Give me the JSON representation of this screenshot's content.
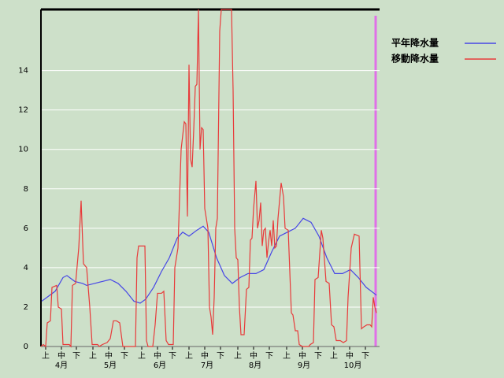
{
  "chart_data": {
    "type": "line",
    "xlim": [
      0,
      213
    ],
    "ylim": [
      0,
      17.1
    ],
    "yticks": [
      0,
      2,
      4,
      6,
      8,
      10,
      12,
      14
    ],
    "xticks": [
      {
        "value": 3,
        "label": "上"
      },
      {
        "value": 13,
        "label": "中"
      },
      {
        "value": 22.5,
        "label": "下"
      },
      {
        "value": 33,
        "label": "上"
      },
      {
        "value": 43,
        "label": "中"
      },
      {
        "value": 53,
        "label": "下"
      },
      {
        "value": 64,
        "label": "上"
      },
      {
        "value": 74,
        "label": "中"
      },
      {
        "value": 83.5,
        "label": "下"
      },
      {
        "value": 94,
        "label": "上"
      },
      {
        "value": 104,
        "label": "中"
      },
      {
        "value": 114,
        "label": "下"
      },
      {
        "value": 125,
        "label": "上"
      },
      {
        "value": 135,
        "label": "中"
      },
      {
        "value": 145,
        "label": "下"
      },
      {
        "value": 156,
        "label": "上"
      },
      {
        "value": 166,
        "label": "中"
      },
      {
        "value": 176,
        "label": "下"
      },
      {
        "value": 186,
        "label": "上"
      },
      {
        "value": 196,
        "label": "中"
      },
      {
        "value": 206,
        "label": "下"
      }
    ],
    "month_labels": [
      {
        "value": 13,
        "label": "4月"
      },
      {
        "value": 44,
        "label": "5月"
      },
      {
        "value": 75.5,
        "label": "6月"
      },
      {
        "value": 105.5,
        "label": "7月"
      },
      {
        "value": 136,
        "label": "8月"
      },
      {
        "value": 167,
        "label": "9月"
      },
      {
        "value": 198,
        "label": "10月"
      }
    ],
    "grid": true,
    "series": [
      {
        "name": "平年降水量",
        "color": "#4646e6",
        "x": [
          0.5,
          9,
          14,
          16.5,
          21.5,
          26.5,
          29,
          34,
          39,
          44,
          49,
          54,
          59,
          63,
          66.5,
          71.5,
          76.5,
          81.5,
          86.5,
          90,
          94,
          99,
          103,
          106.5,
          111.5,
          116.5,
          121.5,
          126.5,
          131.5,
          136.5,
          141.5,
          146.5,
          151.5,
          156.5,
          161.5,
          166.5,
          171.5,
          176.5,
          181.5,
          186.5,
          191.5,
          196.5,
          201.5,
          206.5,
          211.5,
          213
        ],
        "values": [
          2.3,
          2.8,
          3.5,
          3.6,
          3.3,
          3.2,
          3.1,
          3.2,
          3.3,
          3.4,
          3.2,
          2.8,
          2.3,
          2.2,
          2.4,
          3.0,
          3.8,
          4.5,
          5.5,
          5.8,
          5.6,
          5.9,
          6.1,
          5.8,
          4.5,
          3.6,
          3.2,
          3.5,
          3.7,
          3.7,
          3.9,
          4.8,
          5.6,
          5.8,
          6.0,
          6.5,
          6.3,
          5.6,
          4.5,
          3.7,
          3.7,
          3.9,
          3.5,
          3.0,
          2.7,
          2.6
        ]
      },
      {
        "name": "移動降水量",
        "color": "#e83a3a",
        "x": [
          0,
          1.5,
          3,
          4,
          6,
          7,
          10,
          11,
          13,
          14,
          18,
          19,
          20,
          22,
          24,
          25.5,
          27,
          29,
          31,
          32.5,
          36,
          37,
          39,
          42,
          44,
          46,
          48,
          50,
          52,
          60,
          61,
          62,
          66,
          67,
          68,
          71,
          72.5,
          74,
          76.5,
          78,
          79.5,
          81,
          84,
          85,
          87,
          89,
          91,
          92,
          93,
          94,
          95,
          96,
          97,
          98,
          99,
          100,
          101,
          102,
          103,
          104,
          106,
          107,
          108,
          109,
          110,
          111,
          112,
          113.5,
          114.5,
          121,
          122,
          123,
          124,
          125,
          126,
          127,
          129,
          130.5,
          132,
          133,
          134,
          135,
          136.5,
          137.5,
          138.5,
          139.5,
          140.5,
          141.5,
          142.5,
          143.5,
          144.5,
          145.5,
          146.5,
          147.5,
          148.5,
          149.5,
          150.5,
          152.5,
          154,
          155,
          157,
          159,
          160,
          161.5,
          163,
          164,
          166,
          170,
          171,
          173,
          174,
          176,
          178,
          179,
          181,
          183,
          184.5,
          186,
          187.5,
          190,
          192,
          194,
          195,
          197,
          199,
          202,
          203.5,
          205,
          207,
          209,
          210,
          211,
          212,
          213
        ],
        "values": [
          0,
          0.1,
          0,
          1.2,
          1.3,
          3.0,
          3.1,
          2.0,
          1.9,
          0.1,
          0.1,
          0,
          3.1,
          3.2,
          5.0,
          7.4,
          4.2,
          4.0,
          2.0,
          0.1,
          0.1,
          0,
          0.1,
          0.2,
          0.4,
          1.3,
          1.3,
          1.2,
          0,
          0,
          4.5,
          5.1,
          5.1,
          0.3,
          0,
          0,
          1.1,
          2.7,
          2.7,
          2.8,
          0.3,
          0.1,
          0.1,
          4.0,
          5.0,
          10.0,
          11.4,
          11.3,
          6.6,
          14.3,
          9.5,
          9.1,
          11.0,
          13.2,
          13.3,
          17.1,
          10.0,
          11.1,
          11.0,
          7.0,
          6.0,
          2.0,
          1.5,
          0.6,
          2.5,
          6.0,
          6.5,
          16.0,
          17.1,
          17.1,
          13.0,
          6.0,
          4.5,
          4.4,
          2.0,
          0.6,
          0.6,
          2.9,
          3.0,
          5.4,
          5.5,
          7.0,
          8.4,
          6.0,
          6.4,
          7.3,
          5.1,
          5.9,
          6.0,
          4.5,
          5.3,
          5.9,
          5.1,
          6.4,
          5.0,
          5.1,
          6.5,
          8.3,
          7.6,
          6.0,
          5.9,
          1.7,
          1.6,
          0.8,
          0.8,
          0.1,
          0,
          0,
          0.1,
          0.2,
          3.4,
          3.5,
          5.9,
          5.5,
          3.3,
          3.2,
          1.1,
          1.0,
          0.3,
          0.3,
          0.2,
          0.3,
          2.5,
          5.0,
          5.7,
          5.6,
          0.9,
          1.0,
          1.1,
          1.1,
          1.0,
          2.5,
          2.0,
          1.7
        ]
      }
    ]
  }
}
